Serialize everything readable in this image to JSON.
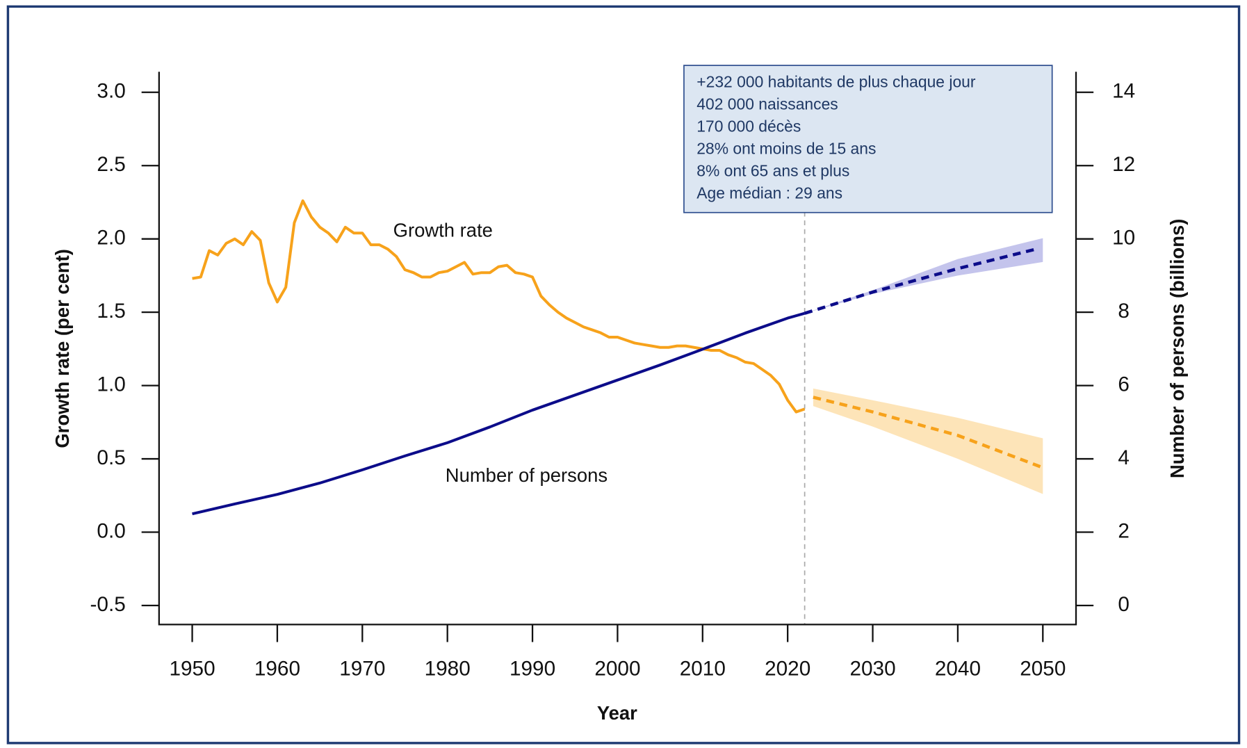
{
  "chart_data": {
    "type": "line",
    "x_label": "Year",
    "y_label": "Growth rate (per cent)",
    "y2_label": "Number of persons (billions)",
    "xlim": [
      1946.1,
      2053.9
    ],
    "xticks": [
      1950,
      1960,
      1970,
      1980,
      1990,
      2000,
      2010,
      2020,
      2030,
      2040,
      2050
    ],
    "ylim": [
      -0.63,
      3.14
    ],
    "yticks": [
      -0.5,
      {
        "value": 0,
        "label": "0.0"
      },
      0.5,
      {
        "value": 1,
        "label": "1.0"
      },
      1.5,
      {
        "value": 2,
        "label": "2.0"
      },
      2.5,
      {
        "value": 3,
        "label": "3.0"
      }
    ],
    "y2lim": [
      -0.52,
      14.56
    ],
    "y2ticks": [
      0,
      2,
      4,
      6,
      8,
      10,
      12,
      14
    ],
    "vline": 2022,
    "annotation": [
      "+232 000 habitants de plus chaque jour",
      "402 000 naissances",
      "170 000 décès",
      "28% ont moins de 15 ans",
      "8% ont 65 ans et plus",
      "Age médian : 29 ans"
    ],
    "bands": [
      {
        "color": "#fde4b8",
        "axis": "y",
        "x": [
          2023,
          2030,
          2040,
          2050
        ],
        "upper": [
          0.98,
          0.9,
          0.78,
          0.64
        ],
        "lower": [
          0.86,
          0.72,
          0.5,
          0.26
        ]
      },
      {
        "color": "#c4c4ec",
        "axis": "y2",
        "x": [
          2022,
          2030,
          2040,
          2050
        ],
        "upper": [
          7.97,
          8.6,
          9.45,
          10.02
        ],
        "lower": [
          7.97,
          8.5,
          9.0,
          9.37
        ]
      }
    ],
    "series": [
      {
        "name": "Growth rate",
        "color": "#f7a21b",
        "axis": "y",
        "dashed": false,
        "x": [
          1950,
          1951,
          1952,
          1953,
          1954,
          1955,
          1956,
          1957,
          1958,
          1959,
          1960,
          1961,
          1962,
          1963,
          1964,
          1965,
          1966,
          1967,
          1968,
          1969,
          1970,
          1971,
          1972,
          1973,
          1974,
          1975,
          1976,
          1977,
          1978,
          1979,
          1980,
          1981,
          1982,
          1983,
          1984,
          1985,
          1986,
          1987,
          1988,
          1989,
          1990,
          1991,
          1992,
          1993,
          1994,
          1995,
          1996,
          1997,
          1998,
          1999,
          2000,
          2001,
          2002,
          2003,
          2004,
          2005,
          2006,
          2007,
          2008,
          2009,
          2010,
          2011,
          2012,
          2013,
          2014,
          2015,
          2016,
          2017,
          2018,
          2019,
          2020,
          2021,
          2022
        ],
        "values": [
          1.73,
          1.74,
          1.92,
          1.89,
          1.97,
          2.0,
          1.96,
          2.05,
          1.99,
          1.7,
          1.57,
          1.67,
          2.11,
          2.26,
          2.15,
          2.08,
          2.04,
          1.98,
          2.08,
          2.04,
          2.04,
          1.96,
          1.96,
          1.93,
          1.88,
          1.79,
          1.77,
          1.74,
          1.74,
          1.77,
          1.78,
          1.81,
          1.84,
          1.76,
          1.77,
          1.77,
          1.81,
          1.82,
          1.77,
          1.76,
          1.74,
          1.61,
          1.55,
          1.5,
          1.46,
          1.43,
          1.4,
          1.38,
          1.36,
          1.33,
          1.33,
          1.31,
          1.29,
          1.28,
          1.27,
          1.26,
          1.26,
          1.27,
          1.27,
          1.26,
          1.25,
          1.24,
          1.24,
          1.21,
          1.19,
          1.16,
          1.15,
          1.11,
          1.07,
          1.01,
          0.9,
          0.82,
          0.84
        ]
      },
      {
        "color": "#f7a21b",
        "axis": "y",
        "dashed": true,
        "x": [
          2023,
          2030,
          2040,
          2050
        ],
        "values": [
          0.92,
          0.82,
          0.66,
          0.44
        ]
      },
      {
        "name": "Number of persons",
        "color": "#0c0c8a",
        "axis": "y2",
        "dashed": false,
        "x": [
          1950,
          1955,
          1960,
          1965,
          1970,
          1975,
          1980,
          1985,
          1990,
          1995,
          2000,
          2005,
          2010,
          2015,
          2020,
          2022
        ],
        "values": [
          2.5,
          2.77,
          3.03,
          3.34,
          3.7,
          4.08,
          4.44,
          4.87,
          5.33,
          5.74,
          6.15,
          6.56,
          6.99,
          7.43,
          7.84,
          7.97
        ]
      },
      {
        "color": "#0c0c8a",
        "axis": "y2",
        "dashed": true,
        "x": [
          2022,
          2030,
          2040,
          2049
        ],
        "values": [
          7.97,
          8.55,
          9.19,
          9.71
        ]
      }
    ]
  }
}
